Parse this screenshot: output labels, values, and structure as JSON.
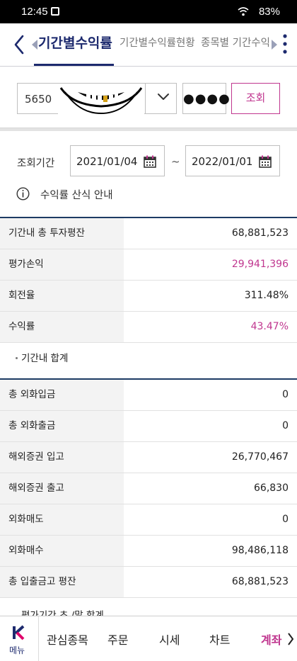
{
  "status_bar": {
    "time": "12:45",
    "battery": "83%"
  },
  "header": {
    "tabs": [
      {
        "label": "기간별수익률"
      },
      {
        "label": "기간별수익률현황"
      },
      {
        "label": "종목별 기간수익현황"
      }
    ]
  },
  "account": {
    "prefix": "5650",
    "password_mask": "●●●●",
    "query_label": "조회"
  },
  "period": {
    "label": "조회기간",
    "start": "2021/01/04",
    "separator": "~",
    "end": "2022/01/01"
  },
  "info": {
    "text": "수익률 산식 안내"
  },
  "table1": [
    {
      "label": "기간내 총 투자평잔",
      "value": "68,881,523",
      "highlight": false
    },
    {
      "label": "평가손익",
      "value": "29,941,396",
      "highlight": true
    },
    {
      "label": "회전율",
      "value": "311.48%",
      "highlight": false
    },
    {
      "label": "수익률",
      "value": "43.47%",
      "highlight": true
    }
  ],
  "sum1": {
    "label": "기간내 합계"
  },
  "table2": [
    {
      "label": "총 외화입금",
      "value": "0"
    },
    {
      "label": "총 외화출금",
      "value": "0"
    },
    {
      "label": "해외증권 입고",
      "value": "26,770,467"
    },
    {
      "label": "해외증권 출고",
      "value": "66,830"
    },
    {
      "label": "외화매도",
      "value": "0"
    },
    {
      "label": "외화매수",
      "value": "98,486,118"
    },
    {
      "label": "총 입출금고 평잔",
      "value": "68,881,523"
    }
  ],
  "partial_row": {
    "text": "평가기간 초 /말 합계"
  },
  "bottom_nav": {
    "menu_label": "메뉴",
    "items": [
      {
        "label": "관심종목"
      },
      {
        "label": "주문"
      },
      {
        "label": "시세"
      },
      {
        "label": "차트"
      },
      {
        "label": "계좌"
      }
    ]
  },
  "colors": {
    "accent": "#c0368f",
    "navy": "#1d2a6e",
    "label_bg": "#f3f3f3"
  }
}
